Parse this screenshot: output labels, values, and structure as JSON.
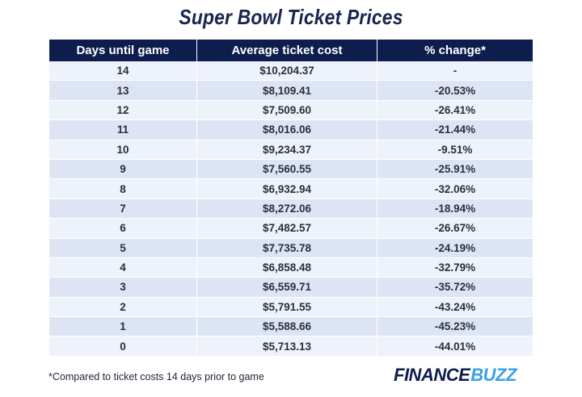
{
  "title": "Super Bowl Ticket Prices",
  "table": {
    "headers": [
      "Days until game",
      "Average ticket cost",
      "% change*"
    ],
    "rows": [
      [
        "14",
        "$10,204.37",
        "-"
      ],
      [
        "13",
        "$8,109.41",
        "-20.53%"
      ],
      [
        "12",
        "$7,509.60",
        "-26.41%"
      ],
      [
        "11",
        "$8,016.06",
        "-21.44%"
      ],
      [
        "10",
        "$9,234.37",
        "-9.51%"
      ],
      [
        "9",
        "$7,560.55",
        "-25.91%"
      ],
      [
        "8",
        "$6,932.94",
        "-32.06%"
      ],
      [
        "7",
        "$8,272.06",
        "-18.94%"
      ],
      [
        "6",
        "$7,482.57",
        "-26.67%"
      ],
      [
        "5",
        "$7,735.78",
        "-24.19%"
      ],
      [
        "4",
        "$6,858.48",
        "-32.79%"
      ],
      [
        "3",
        "$6,559.71",
        "-35.72%"
      ],
      [
        "2",
        "$5,791.55",
        "-43.24%"
      ],
      [
        "1",
        "$5,588.66",
        "-45.23%"
      ],
      [
        "0",
        "$5,713.13",
        "-44.01%"
      ]
    ]
  },
  "footnote": "*Compared to ticket costs 14 days prior to game",
  "logo": {
    "part1": "FINANCE",
    "part2": "BUZZ"
  },
  "colors": {
    "header_bg": "#0d1d4d",
    "row_light": "#eef2fa",
    "row_dark": "#dde5f5",
    "title": "#1a2550",
    "logo_dark": "#0d1d4d",
    "logo_accent": "#3aa0e8"
  }
}
